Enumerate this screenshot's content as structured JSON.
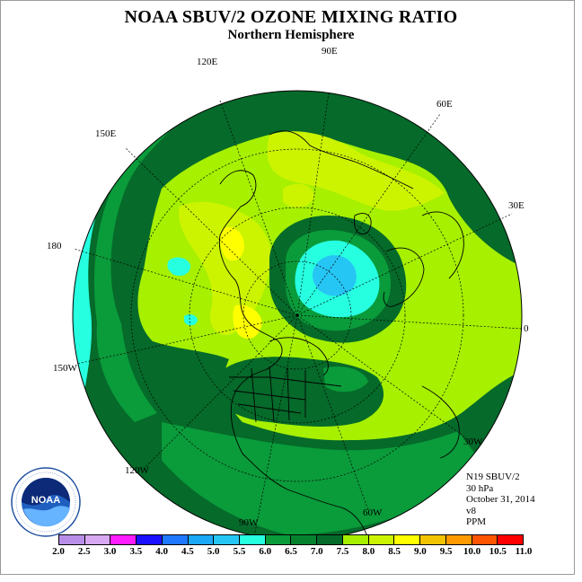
{
  "title": "NOAA SBUV/2 OZONE MIXING RATIO",
  "subtitle": "Northern Hemisphere",
  "longitude_labels": [
    "90E",
    "60E",
    "30E",
    "0",
    "30W",
    "60W",
    "90W",
    "120W",
    "150W",
    "180",
    "150E",
    "120E"
  ],
  "info": {
    "satellite": "N19 SBUV/2",
    "level": "30 hPa",
    "date": "October 31, 2014",
    "version": "v8",
    "units": "PPM"
  },
  "logo_text": "NOAA",
  "colorbar": {
    "ticks": [
      "2.0",
      "2.5",
      "3.0",
      "3.5",
      "4.0",
      "4.5",
      "5.0",
      "5.5",
      "6.0",
      "6.5",
      "7.0",
      "7.5",
      "8.0",
      "8.5",
      "9.0",
      "9.5",
      "10.0",
      "10.5",
      "11.0"
    ],
    "colors": [
      "#b98ee8",
      "#d9a8f2",
      "#ff1cff",
      "#1b10ff",
      "#1f78ff",
      "#1ba8f4",
      "#26c6f4",
      "#26ffe0",
      "#0a9b3a",
      "#06822f",
      "#056a2a",
      "#a6f000",
      "#ccf400",
      "#ffff00",
      "#f2c400",
      "#ff9a00",
      "#ff5500",
      "#ff0000",
      "#8f5030"
    ]
  },
  "ozone_levels_shown": [
    "5.5",
    "6.0",
    "6.5",
    "7.0",
    "7.5",
    "8.0",
    "8.5",
    "5.0"
  ]
}
